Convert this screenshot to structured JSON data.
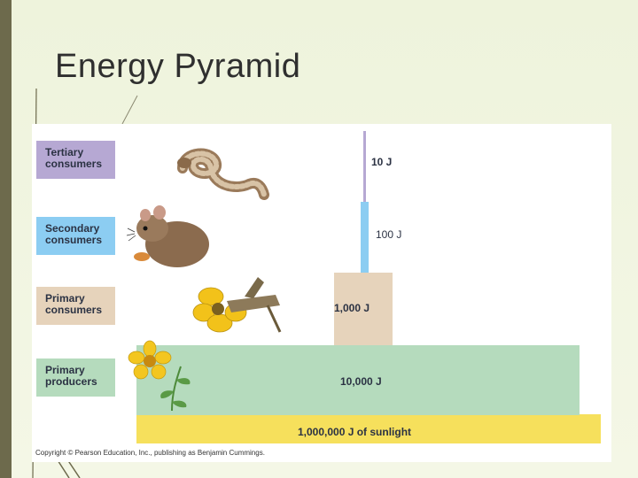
{
  "slide": {
    "title": "Energy Pyramid"
  },
  "levels": [
    {
      "label_line1": "Tertiary",
      "label_line2": "consumers",
      "energy": "10 J",
      "color": "#b6a8d3",
      "icon": "snake-icon"
    },
    {
      "label_line1": "Secondary",
      "label_line2": "consumers",
      "energy": "100 J",
      "color": "#8ccdf2",
      "icon": "mouse-icon"
    },
    {
      "label_line1": "Primary",
      "label_line2": "consumers",
      "energy": "1,000 J",
      "color": "#e6d3bb",
      "icon": "grasshopper-icon"
    },
    {
      "label_line1": "Primary",
      "label_line2": "producers",
      "energy": "10,000 J",
      "color": "#b5dbbd",
      "icon": "flower-plant-icon"
    }
  ],
  "sunlight": {
    "energy": "1,000,000 J of sunlight",
    "color": "#f6e05c"
  },
  "copyright": "Copyright © Pearson Education, Inc., publishing as Benjamin Cummings."
}
